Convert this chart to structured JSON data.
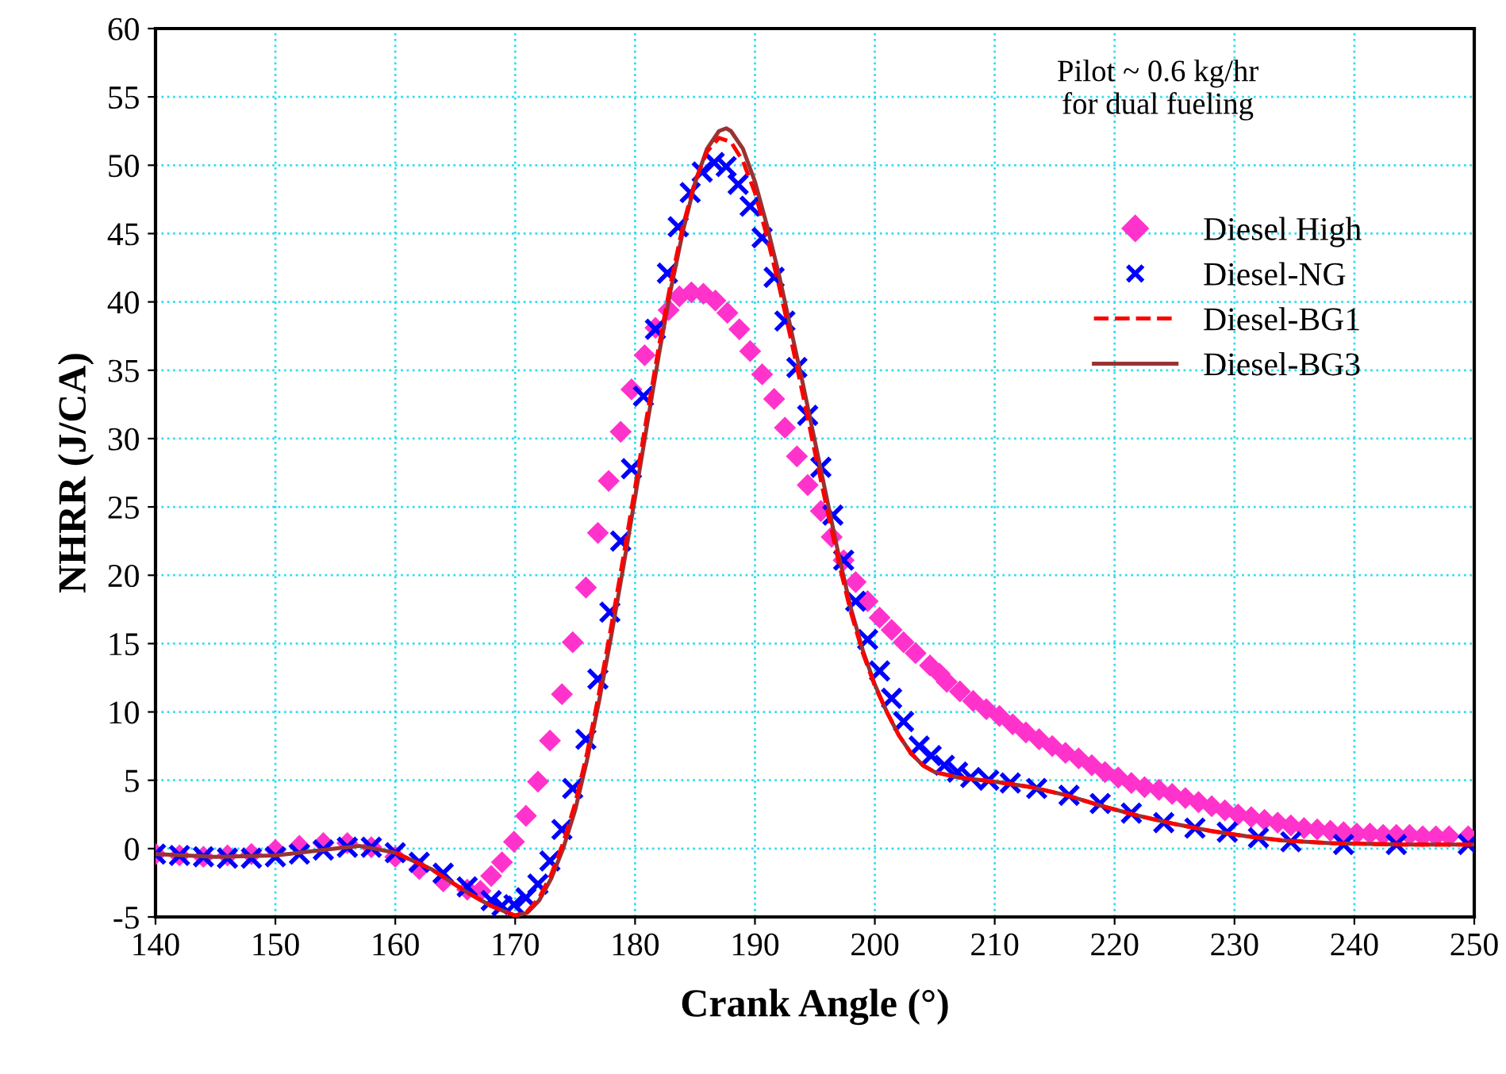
{
  "chart_data": {
    "type": "line",
    "xlabel": "Crank Angle (°)",
    "ylabel": "NHRR (J/CA)",
    "annotations": [
      "Pilot ~ 0.6 kg/hr\nfor dual fueling"
    ],
    "xlim": [
      140,
      250
    ],
    "ylim": [
      -5,
      60
    ],
    "xticks": [
      140,
      150,
      160,
      170,
      180,
      190,
      200,
      210,
      220,
      230,
      240,
      250
    ],
    "yticks": [
      -5,
      0,
      5,
      10,
      15,
      20,
      25,
      30,
      35,
      40,
      45,
      50,
      55,
      60
    ],
    "grid": true,
    "legend": "right",
    "series": [
      {
        "name": "Diesel High",
        "type": "scatter",
        "marker": "diamond",
        "color": "#ff33cc",
        "x": [
          140,
          142,
          144,
          146,
          148,
          150,
          152,
          154,
          156,
          158,
          160,
          162,
          164,
          166,
          167.1,
          168.0,
          168.9,
          169.9,
          170.9,
          171.9,
          172.9,
          173.9,
          174.8,
          175.9,
          176.9,
          177.8,
          178.8,
          179.7,
          180.8,
          181.7,
          182.8,
          183.7,
          184.7,
          185.7,
          186.7,
          187.7,
          188.7,
          189.6,
          190.6,
          191.6,
          192.5,
          193.5,
          194.4,
          195.5,
          196.4,
          197.4,
          198.4,
          199.4,
          200.4,
          201.4,
          202.4,
          203.4,
          204.6,
          205.4,
          206.0,
          207.1,
          208.2,
          209.3,
          210.4,
          211.5,
          212.6,
          213.7,
          214.8,
          215.9,
          217.0,
          218.1,
          219.2,
          220.3,
          221.4,
          222.5,
          223.7,
          224.8,
          225.9,
          227.0,
          228.1,
          229.2,
          230.3,
          231.4,
          232.5,
          233.6,
          234.7,
          235.8,
          236.9,
          238.0,
          239.1,
          240.2,
          241.3,
          242.4,
          243.5,
          244.6,
          245.7,
          246.8,
          247.9,
          249.5
        ],
        "values": [
          -0.4,
          -0.5,
          -0.6,
          -0.5,
          -0.4,
          -0.1,
          0.2,
          0.4,
          0.4,
          0.1,
          -0.6,
          -1.5,
          -2.4,
          -3.0,
          -3.1,
          -2.0,
          -1.0,
          0.5,
          2.4,
          4.9,
          7.9,
          11.3,
          15.1,
          19.1,
          23.1,
          26.9,
          30.5,
          33.6,
          36.1,
          38.1,
          39.4,
          40.4,
          40.7,
          40.6,
          40.1,
          39.2,
          38.0,
          36.4,
          34.7,
          32.9,
          30.8,
          28.7,
          26.6,
          24.7,
          22.8,
          21.1,
          19.5,
          18.1,
          16.9,
          16.0,
          15.1,
          14.3,
          13.4,
          12.8,
          12.2,
          11.5,
          10.8,
          10.2,
          9.7,
          9.1,
          8.5,
          8.0,
          7.5,
          7.0,
          6.6,
          6.1,
          5.6,
          5.2,
          4.8,
          4.5,
          4.3,
          4.0,
          3.7,
          3.4,
          3.1,
          2.8,
          2.5,
          2.3,
          2.1,
          1.9,
          1.7,
          1.5,
          1.4,
          1.3,
          1.2,
          1.1,
          1.1,
          1.0,
          1.0,
          1.0,
          0.9,
          0.9,
          0.9,
          0.9
        ]
      },
      {
        "name": "Diesel-NG",
        "type": "scatter",
        "marker": "cross",
        "color": "#0000ff",
        "x": [
          140,
          142,
          144,
          146,
          148,
          150,
          152,
          154,
          156,
          158,
          160,
          162,
          164,
          166,
          168,
          168.9,
          169.9,
          170.9,
          171.9,
          172.9,
          173.9,
          174.8,
          175.9,
          176.9,
          177.9,
          178.8,
          179.7,
          180.7,
          181.7,
          182.7,
          183.6,
          184.6,
          185.6,
          186.6,
          187.6,
          188.6,
          189.6,
          190.6,
          191.6,
          192.5,
          193.5,
          194.4,
          195.5,
          196.5,
          197.4,
          198.4,
          199.4,
          200.4,
          201.4,
          202.4,
          203.7,
          204.7,
          205.8,
          206.9,
          208.0,
          209.5,
          211.3,
          213.5,
          216.2,
          218.8,
          221.4,
          224.1,
          226.7,
          229.4,
          232.0,
          234.7,
          239.1,
          243.5,
          249.5
        ],
        "values": [
          -0.4,
          -0.5,
          -0.6,
          -0.7,
          -0.7,
          -0.6,
          -0.4,
          -0.1,
          0.1,
          0.1,
          -0.3,
          -1.0,
          -1.8,
          -2.8,
          -3.8,
          -4.2,
          -4.1,
          -3.6,
          -2.6,
          -0.9,
          1.4,
          4.4,
          8.0,
          12.4,
          17.3,
          22.5,
          27.8,
          33.1,
          38.0,
          42.1,
          45.5,
          48.0,
          49.5,
          50.2,
          49.9,
          48.6,
          47.0,
          44.7,
          41.8,
          38.6,
          35.2,
          31.7,
          27.9,
          24.4,
          21.1,
          18.1,
          15.3,
          13.0,
          11.0,
          9.3,
          7.5,
          6.8,
          6.1,
          5.6,
          5.2,
          5.0,
          4.8,
          4.4,
          3.9,
          3.3,
          2.6,
          1.9,
          1.5,
          1.2,
          0.8,
          0.5,
          0.3,
          0.3,
          0.3
        ]
      },
      {
        "name": "Diesel-BG1",
        "line_style": "dashed",
        "color": "#ff0000",
        "x": [
          160,
          163,
          166,
          168,
          170,
          171,
          172,
          173,
          174,
          175,
          176,
          177,
          178,
          179,
          180,
          181,
          182,
          183,
          184,
          185,
          186,
          187,
          188,
          189,
          190,
          191,
          192,
          193,
          194,
          195,
          196,
          197,
          198,
          199,
          200,
          201,
          202,
          203,
          204,
          205,
          207,
          210,
          213,
          216,
          219,
          222,
          225,
          228,
          231,
          234,
          238,
          244,
          250
        ],
        "values": [
          -0.3,
          -1.5,
          -3.2,
          -4.2,
          -4.9,
          -4.6,
          -3.6,
          -1.9,
          0.4,
          3.3,
          7.0,
          11.4,
          16.2,
          21.2,
          26.4,
          31.7,
          36.8,
          41.5,
          45.6,
          48.8,
          51.0,
          52.0,
          51.7,
          50.3,
          48.0,
          44.8,
          41.2,
          37.3,
          33.2,
          29.0,
          24.9,
          20.9,
          17.3,
          14.3,
          11.9,
          10.0,
          8.3,
          7.0,
          6.1,
          5.6,
          5.2,
          4.9,
          4.5,
          3.9,
          3.1,
          2.4,
          1.8,
          1.3,
          0.9,
          0.6,
          0.4,
          0.3,
          0.3
        ]
      },
      {
        "name": "Diesel-BG3",
        "line_style": "solid",
        "color": "#993333",
        "x": [
          140,
          145,
          150,
          155,
          157,
          160,
          163,
          166,
          168,
          170,
          171,
          172,
          173,
          174,
          175,
          176,
          177,
          178,
          179,
          180,
          181,
          182,
          183,
          184,
          185,
          186,
          187,
          187.6,
          188,
          189,
          190,
          191,
          192,
          193,
          194,
          195,
          196,
          197,
          198,
          199,
          200,
          201,
          202,
          203,
          204,
          205,
          207,
          210,
          213,
          216,
          219,
          222,
          225,
          228,
          231,
          234,
          238,
          244,
          250
        ],
        "values": [
          -0.4,
          -0.6,
          -0.5,
          0,
          0.2,
          -0.3,
          -1.5,
          -3.2,
          -4.2,
          -4.9,
          -4.7,
          -3.8,
          -2.2,
          0,
          2.8,
          6.5,
          10.8,
          15.5,
          20.5,
          25.7,
          31.0,
          36.2,
          41.0,
          45.2,
          48.7,
          51.2,
          52.5,
          52.7,
          52.5,
          51.2,
          48.8,
          45.6,
          42.0,
          38.0,
          34.0,
          29.8,
          25.6,
          21.4,
          17.6,
          14.5,
          12.0,
          10.0,
          8.3,
          7.0,
          6.1,
          5.6,
          5.2,
          4.9,
          4.5,
          3.9,
          3.1,
          2.4,
          1.8,
          1.3,
          0.9,
          0.6,
          0.4,
          0.3,
          0.3
        ]
      }
    ]
  }
}
